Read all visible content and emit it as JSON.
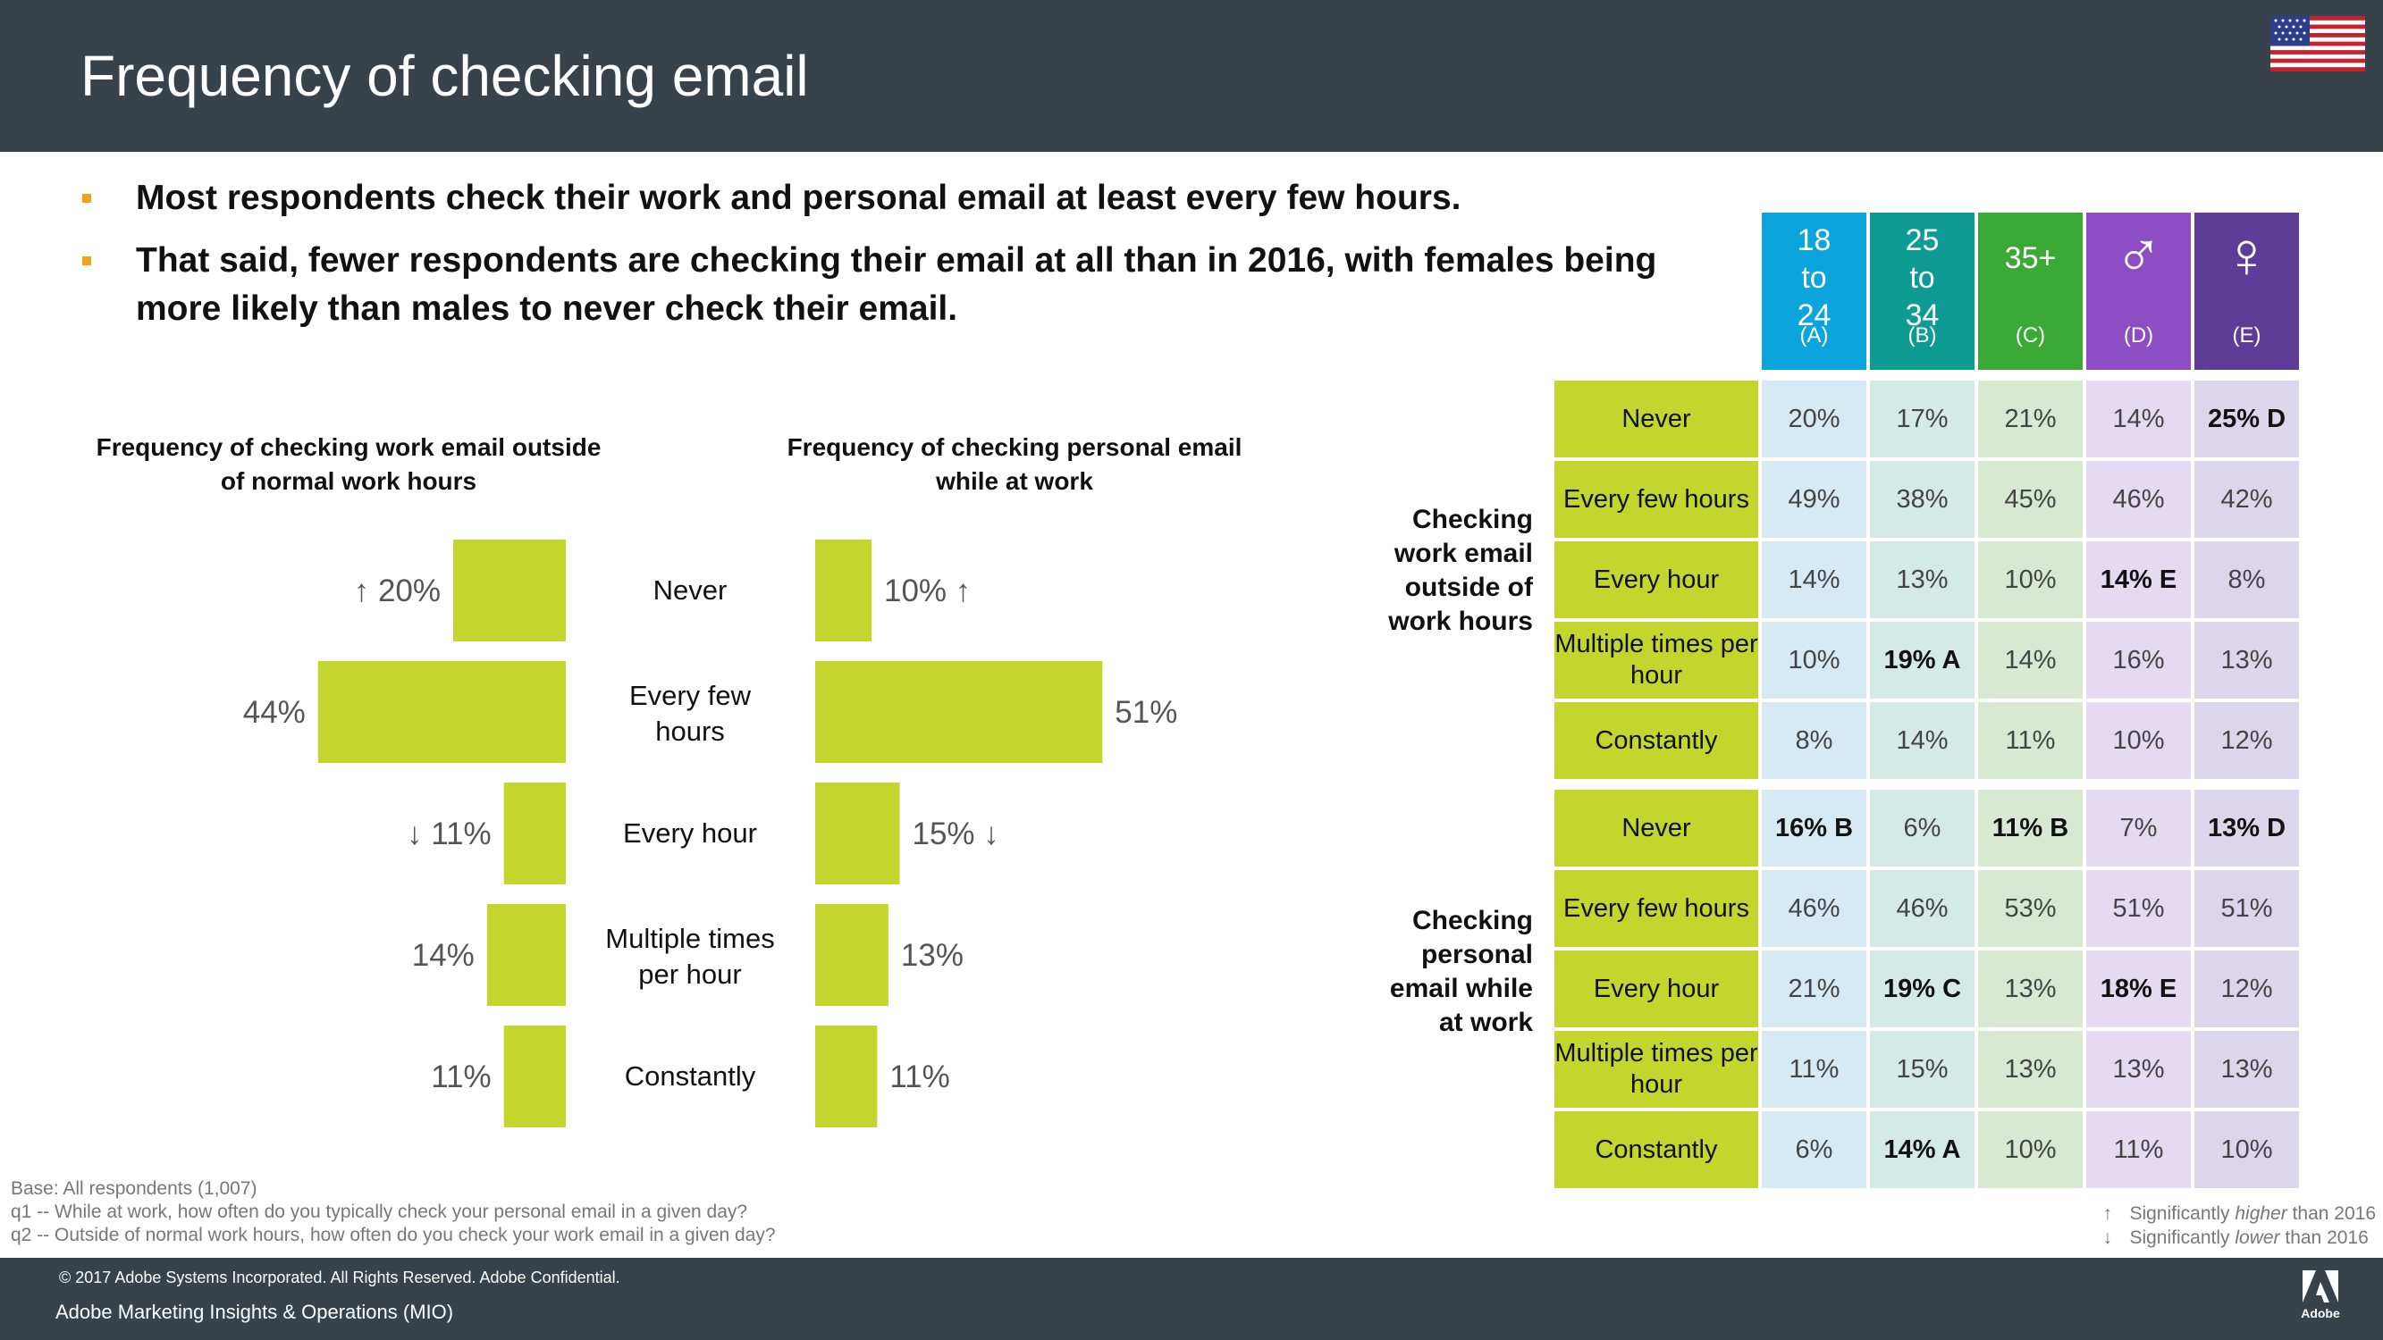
{
  "header": {
    "title": "Frequency of checking email",
    "flag_icon": "us-flag-icon"
  },
  "bullets": [
    "Most respondents check their work and personal email at least every few hours.",
    "That said, fewer respondents are checking their email at all than in 2016, with females being more likely than males to never check their email."
  ],
  "chart_data": [
    {
      "type": "bar",
      "orientation": "horizontal",
      "title": "Frequency of checking work email outside of normal work hours",
      "categories": [
        "Never",
        "Every few hours",
        "Every hour",
        "Multiple times per hour",
        "Constantly"
      ],
      "values": [
        20,
        44,
        11,
        14,
        11
      ],
      "value_labels": [
        "20%",
        "44%",
        "11%",
        "14%",
        "11%"
      ],
      "trend": [
        "up",
        "",
        "down",
        "",
        ""
      ],
      "unit": "%"
    },
    {
      "type": "bar",
      "orientation": "horizontal",
      "title": "Frequency of checking personal email while at work",
      "categories": [
        "Never",
        "Every few hours",
        "Every hour",
        "Multiple times per hour",
        "Constantly"
      ],
      "values": [
        10,
        51,
        15,
        13,
        11
      ],
      "value_labels": [
        "10%",
        "51%",
        "15%",
        "13%",
        "11%"
      ],
      "trend": [
        "up",
        "",
        "down",
        "",
        ""
      ],
      "unit": "%"
    },
    {
      "type": "table",
      "columns": [
        {
          "label": "18 to 24",
          "letter": "(A)",
          "color": "#0ba4dc"
        },
        {
          "label": "25 to 34",
          "letter": "(B)",
          "color": "#0e9b94"
        },
        {
          "label": "35+",
          "letter": "(C)",
          "color": "#3aa936"
        },
        {
          "label": "♂",
          "letter": "(D)",
          "color": "#8c4ec2"
        },
        {
          "label": "♀",
          "letter": "(E)",
          "color": "#5e3c98"
        }
      ],
      "sections": [
        {
          "label": "Checking work email outside of work hours",
          "rows": [
            {
              "label": "Never",
              "cells": [
                "20%",
                "17%",
                "21%",
                "14%",
                "25% D"
              ],
              "bold": [
                false,
                false,
                false,
                false,
                true
              ]
            },
            {
              "label": "Every few hours",
              "cells": [
                "49%",
                "38%",
                "45%",
                "46%",
                "42%"
              ],
              "bold": [
                false,
                false,
                false,
                false,
                false
              ]
            },
            {
              "label": "Every hour",
              "cells": [
                "14%",
                "13%",
                "10%",
                "14% E",
                "8%"
              ],
              "bold": [
                false,
                false,
                false,
                true,
                false
              ]
            },
            {
              "label": "Multiple times per hour",
              "cells": [
                "10%",
                "19% A",
                "14%",
                "16%",
                "13%"
              ],
              "bold": [
                false,
                true,
                false,
                false,
                false
              ]
            },
            {
              "label": "Constantly",
              "cells": [
                "8%",
                "14%",
                "11%",
                "10%",
                "12%"
              ],
              "bold": [
                false,
                false,
                false,
                false,
                false
              ]
            }
          ]
        },
        {
          "label": "Checking personal email while at work",
          "rows": [
            {
              "label": "Never",
              "cells": [
                "16% B",
                "6%",
                "11% B",
                "7%",
                "13% D"
              ],
              "bold": [
                true,
                false,
                true,
                false,
                true
              ]
            },
            {
              "label": "Every few hours",
              "cells": [
                "46%",
                "46%",
                "53%",
                "51%",
                "51%"
              ],
              "bold": [
                false,
                false,
                false,
                false,
                false
              ]
            },
            {
              "label": "Every hour",
              "cells": [
                "21%",
                "19% C",
                "13%",
                "18% E",
                "12%"
              ],
              "bold": [
                false,
                true,
                false,
                true,
                false
              ]
            },
            {
              "label": "Multiple times per hour",
              "cells": [
                "11%",
                "15%",
                "13%",
                "13%",
                "13%"
              ],
              "bold": [
                false,
                false,
                false,
                false,
                false
              ]
            },
            {
              "label": "Constantly",
              "cells": [
                "6%",
                "14% A",
                "10%",
                "11%",
                "10%"
              ],
              "bold": [
                false,
                true,
                false,
                false,
                false
              ]
            }
          ]
        }
      ]
    }
  ],
  "notes": [
    "Base: All respondents (1,007)",
    "q1 -- While at work, how often do you typically check your personal email in a given day?",
    "q2 -- Outside of normal work hours, how often do you check your work email in a given day?"
  ],
  "legend": {
    "up_symbol": "↑",
    "down_symbol": "↓",
    "higher_pre": "Significantly ",
    "higher_em": "higher",
    "higher_post": " than 2016",
    "lower_pre": "Significantly ",
    "lower_em": "lower",
    "lower_post": " than 2016"
  },
  "footer": {
    "copyright": "© 2017 Adobe Systems Incorporated.  All Rights Reserved.  Adobe Confidential.",
    "org": "Adobe Marketing Insights & Operations (MIO)",
    "logo_text": "Adobe"
  },
  "colors": {
    "header_bg": "#37424a",
    "bar": "#c3d62e",
    "bullet": "#f0a31b"
  }
}
